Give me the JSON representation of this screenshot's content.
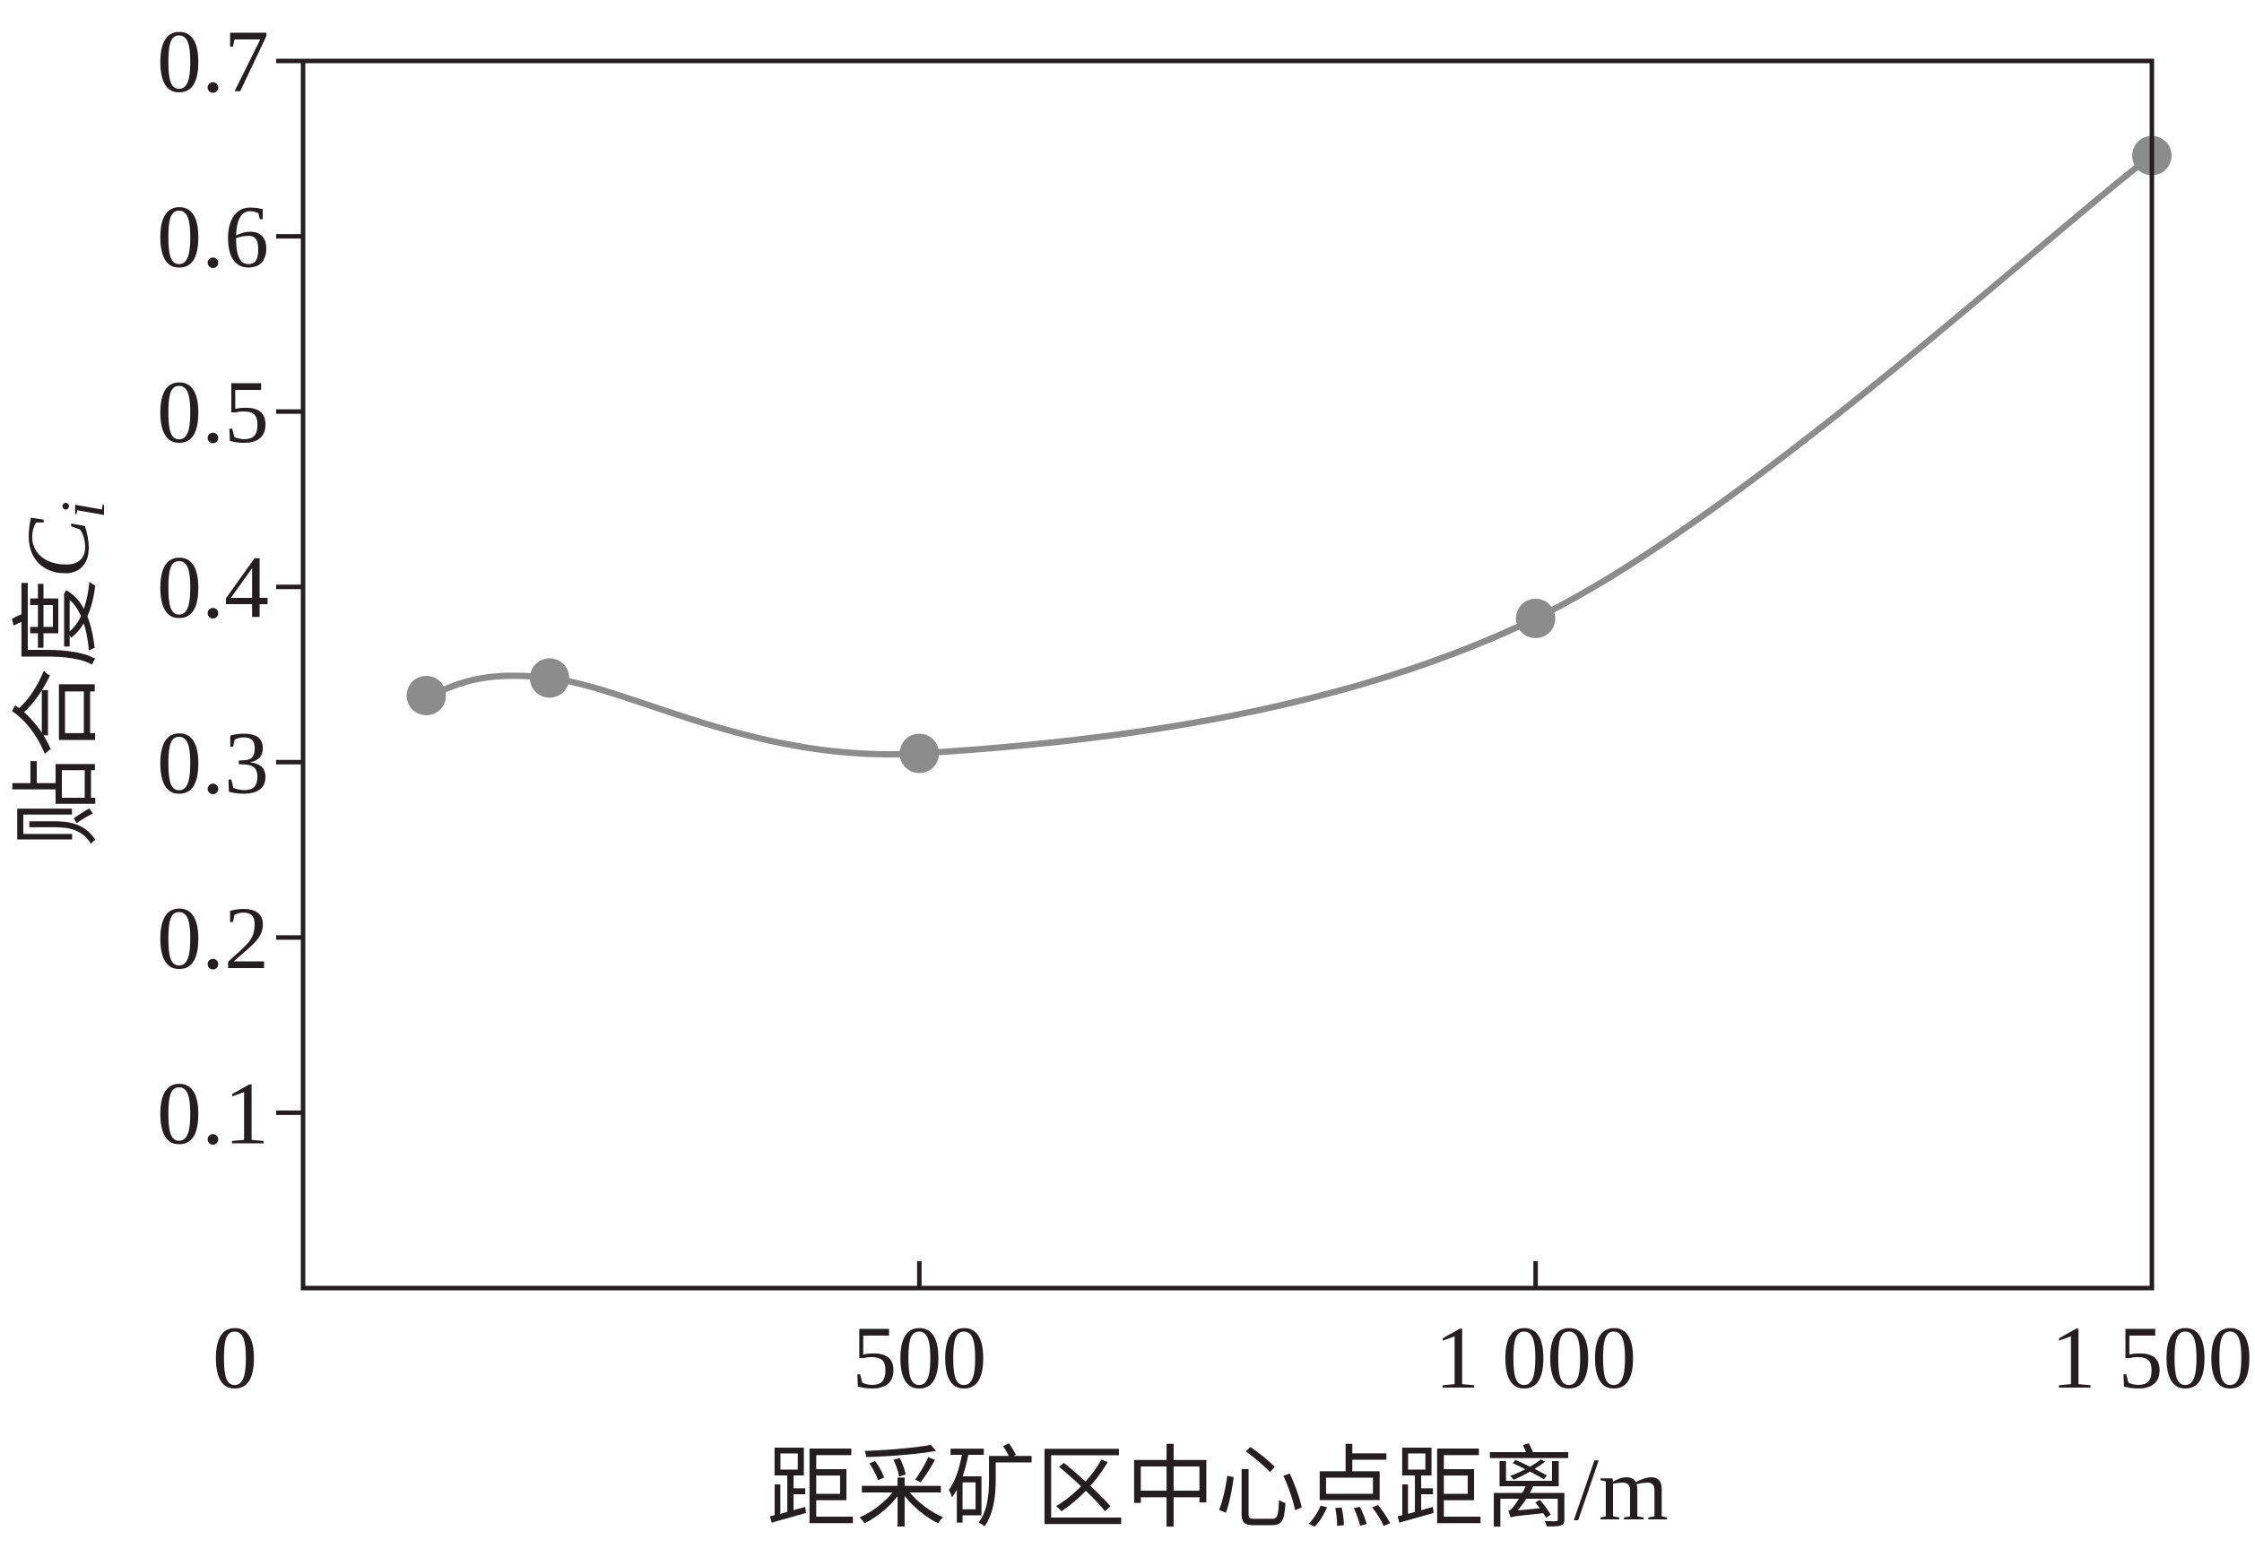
{
  "chart_data": {
    "type": "line",
    "title": "",
    "xlabel": "距采矿区中心点距离/m",
    "ylabel": {
      "text": "贴合度",
      "symbol": "C",
      "subscript": "i"
    },
    "x_ticks": [
      {
        "value": 0,
        "label": "0"
      },
      {
        "value": 500,
        "label": "500"
      },
      {
        "value": 1000,
        "label": "1 000"
      },
      {
        "value": 1500,
        "label": "1 500"
      }
    ],
    "y_ticks": [
      {
        "value": 0.1,
        "label": "0.1"
      },
      {
        "value": 0.2,
        "label": "0.2"
      },
      {
        "value": 0.3,
        "label": "0.3"
      },
      {
        "value": 0.4,
        "label": "0.4"
      },
      {
        "value": 0.5,
        "label": "0.5"
      },
      {
        "value": 0.6,
        "label": "0.6"
      },
      {
        "value": 0.7,
        "label": "0.7"
      }
    ],
    "xlim": [
      0,
      1500
    ],
    "ylim": [
      0,
      0.7
    ],
    "grid": false,
    "series": [
      {
        "x": [
          100,
          200,
          500,
          1000,
          1500
        ],
        "y": [
          0.338,
          0.348,
          0.305,
          0.382,
          0.646
        ]
      }
    ],
    "colors": {
      "line": "#8c8c8c",
      "marker": "#8c8c8c",
      "axis": "#231f20",
      "text": "#231f20"
    }
  }
}
